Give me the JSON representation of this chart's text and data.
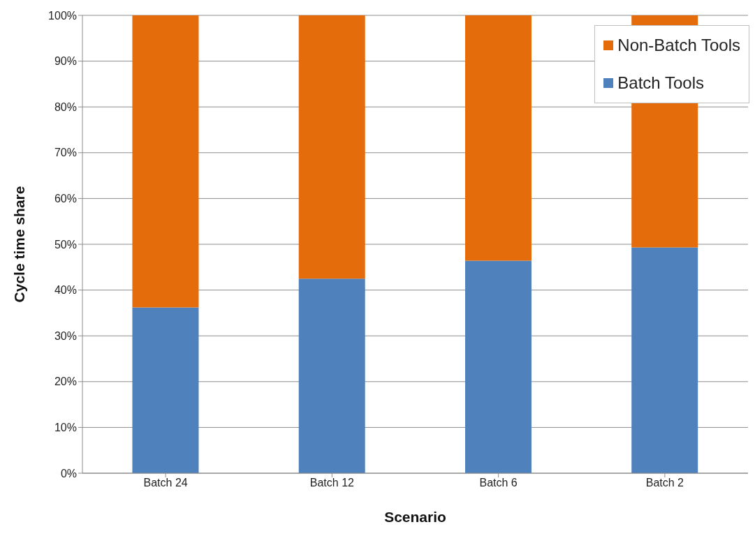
{
  "chart_data": {
    "type": "bar",
    "stacked": true,
    "xlabel": "Scenario",
    "ylabel": "Cycle time share",
    "categories": [
      "Batch 24",
      "Batch 12",
      "Batch 6",
      "Batch 2"
    ],
    "series": [
      {
        "name": "Batch Tools",
        "color": "#4f81bd",
        "values": [
          36.2,
          42.5,
          46.4,
          49.3
        ]
      },
      {
        "name": "Non-Batch Tools",
        "color": "#e46c0a",
        "values": [
          63.8,
          57.5,
          53.6,
          50.7
        ]
      }
    ],
    "ylim": [
      0,
      100
    ],
    "yticks": [
      {
        "value": 0,
        "label": "0%"
      },
      {
        "value": 10,
        "label": "10%"
      },
      {
        "value": 20,
        "label": "20%"
      },
      {
        "value": 30,
        "label": "30%"
      },
      {
        "value": 40,
        "label": "40%"
      },
      {
        "value": 50,
        "label": "50%"
      },
      {
        "value": 60,
        "label": "60%"
      },
      {
        "value": 70,
        "label": "70%"
      },
      {
        "value": 80,
        "label": "80%"
      },
      {
        "value": 90,
        "label": "90%"
      },
      {
        "value": 100,
        "label": "100%"
      }
    ],
    "grid": "y",
    "legend": "top right"
  }
}
